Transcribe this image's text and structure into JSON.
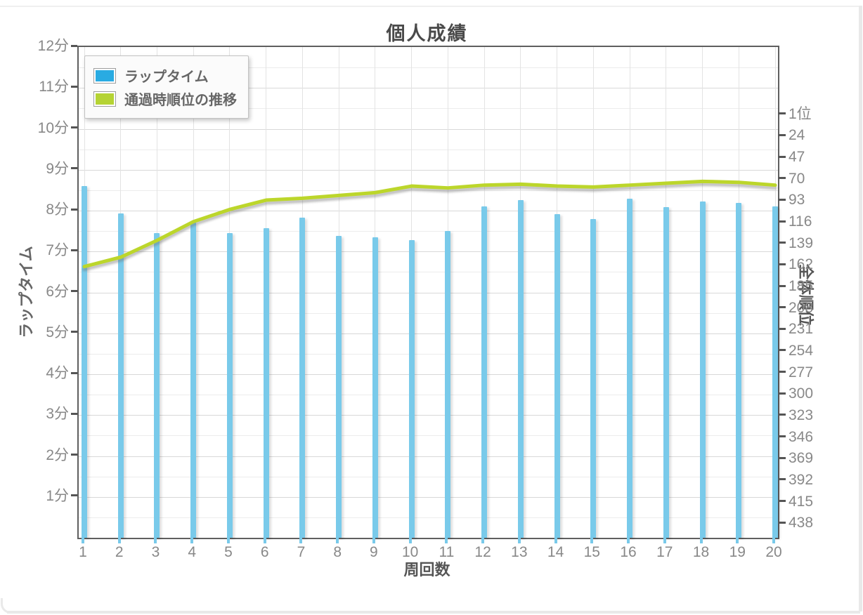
{
  "chart_data": {
    "type": "bar",
    "title": "個人成績",
    "categories": [
      1,
      2,
      3,
      4,
      5,
      6,
      7,
      8,
      9,
      10,
      11,
      12,
      13,
      14,
      15,
      16,
      17,
      18,
      19,
      20
    ],
    "series": [
      {
        "name": "ラップタイム",
        "type": "bar",
        "yaxis": "left",
        "unit": "分",
        "values": [
          8.6,
          7.93,
          7.45,
          7.71,
          7.45,
          7.57,
          7.83,
          7.38,
          7.35,
          7.28,
          7.51,
          8.1,
          8.26,
          7.92,
          7.8,
          8.29,
          8.09,
          8.23,
          8.19,
          8.11
        ]
      },
      {
        "name": "通過時順位の推移",
        "type": "line",
        "yaxis": "right",
        "unit": "位",
        "values": [
          163,
          153,
          135,
          115,
          102,
          92,
          90,
          87,
          84,
          77,
          79,
          76,
          75,
          77,
          78,
          76,
          74,
          72,
          73,
          76
        ]
      }
    ],
    "x_axis": {
      "title": "周回数",
      "tick_labels": [
        "1",
        "2",
        "3",
        "4",
        "5",
        "6",
        "7",
        "8",
        "9",
        "10",
        "11",
        "12",
        "13",
        "14",
        "15",
        "16",
        "17",
        "18",
        "19",
        "20"
      ]
    },
    "left_axis": {
      "title": "ラップタイム",
      "range": [
        0,
        12
      ],
      "tick_labels": [
        "1分",
        "2分",
        "3分",
        "4分",
        "5分",
        "6分",
        "7分",
        "8分",
        "9分",
        "10分",
        "11分",
        "12分"
      ]
    },
    "right_axis": {
      "title": "全体順位",
      "tick_labels": [
        "1位",
        "24",
        "47",
        "70",
        "93",
        "116",
        "139",
        "162",
        "185",
        "208",
        "231",
        "254",
        "277",
        "300",
        "323",
        "346",
        "369",
        "392",
        "415",
        "438"
      ],
      "tick_values": [
        1,
        24,
        47,
        70,
        93,
        116,
        139,
        162,
        185,
        208,
        231,
        254,
        277,
        300,
        323,
        346,
        369,
        392,
        415,
        438
      ]
    },
    "legend": {
      "position": "top-left",
      "entries": [
        {
          "label": "ラップタイム",
          "color": "#29ABE2"
        },
        {
          "label": "通過時順位の推移",
          "color": "#B5D334"
        }
      ]
    },
    "grid": true,
    "colors": {
      "bar": "#79CAEA",
      "line": "#BCD62B"
    }
  }
}
